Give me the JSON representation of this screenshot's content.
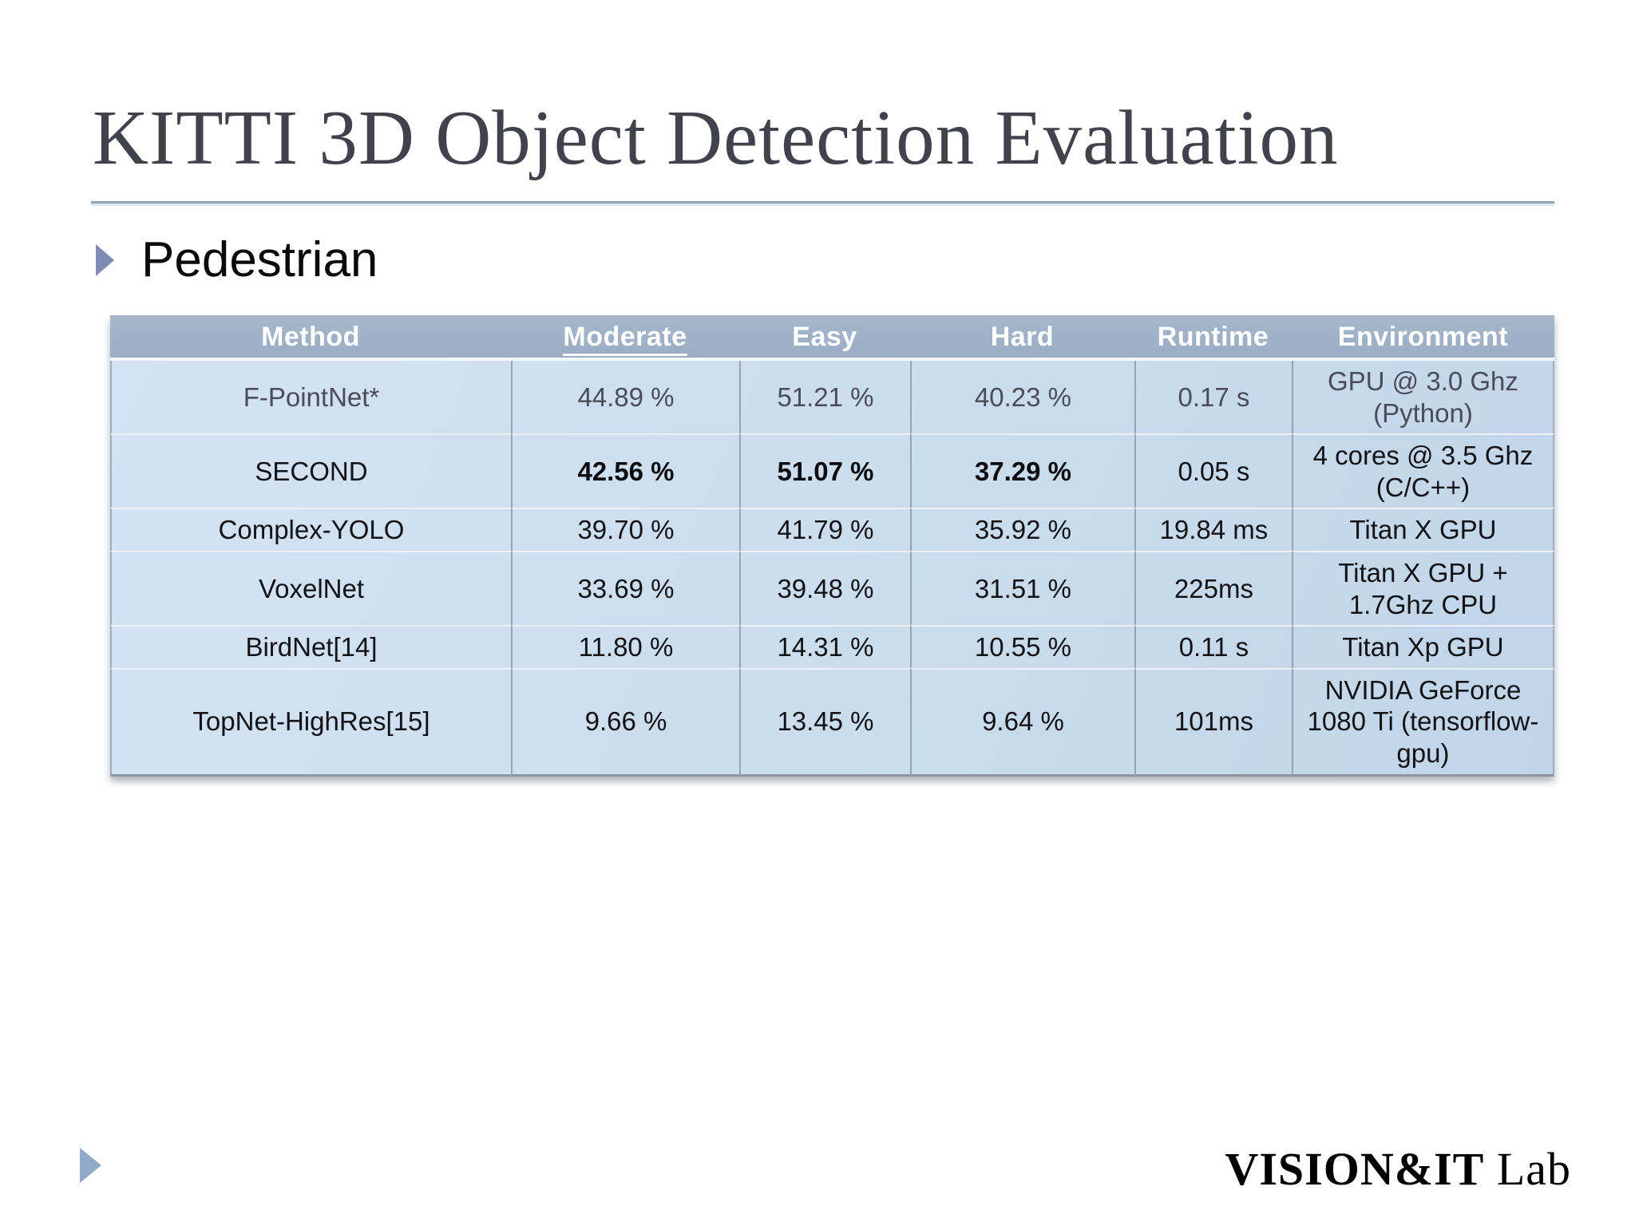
{
  "slide": {
    "title": "KITTI 3D Object Detection Evaluation",
    "section_heading": "Pedestrian",
    "footer_logo_main": "VISION&IT",
    "footer_logo_suffix": " Lab"
  },
  "table": {
    "columns": [
      {
        "key": "method",
        "label": "Method",
        "underlined": false
      },
      {
        "key": "moderate",
        "label": "Moderate",
        "underlined": true
      },
      {
        "key": "easy",
        "label": "Easy",
        "underlined": false
      },
      {
        "key": "hard",
        "label": "Hard",
        "underlined": false
      },
      {
        "key": "runtime",
        "label": "Runtime",
        "underlined": false
      },
      {
        "key": "environment",
        "label": "Environment",
        "underlined": false
      }
    ],
    "rows": [
      {
        "method": "F-PointNet*",
        "moderate": "44.89 %",
        "easy": "51.21 %",
        "hard": "40.23 %",
        "runtime": "0.17 s",
        "environment": "GPU @ 3.0 Ghz\n(Python)",
        "style": "muted"
      },
      {
        "method": "SECOND",
        "moderate": "42.56 %",
        "easy": "51.07 %",
        "hard": "37.29 %",
        "runtime": "0.05 s",
        "environment": "4 cores @ 3.5 Ghz\n(C/C++)",
        "style": "bold-values"
      },
      {
        "method": "Complex-YOLO",
        "moderate": "39.70 %",
        "easy": "41.79 %",
        "hard": "35.92 %",
        "runtime": "19.84 ms",
        "environment": "Titan X GPU",
        "style": "normal"
      },
      {
        "method": "VoxelNet",
        "moderate": "33.69 %",
        "easy": "39.48 %",
        "hard": "31.51 %",
        "runtime": "225ms",
        "environment": "Titan X GPU +\n1.7Ghz CPU",
        "style": "normal"
      },
      {
        "method": "BirdNet[14]",
        "moderate": "11.80 %",
        "easy": "14.31 %",
        "hard": "10.55 %",
        "runtime": "0.11 s",
        "environment": "Titan Xp GPU",
        "style": "normal"
      },
      {
        "method": "TopNet-HighRes[15]",
        "moderate": "9.66 %",
        "easy": "13.45 %",
        "hard": "9.64 %",
        "runtime": "101ms",
        "environment": "NVIDIA GeForce\n1080 Ti (tensorflow-\ngpu)",
        "style": "normal"
      }
    ]
  },
  "colors": {
    "title_text": "#42424c",
    "header_bg": "#9aadc4",
    "header_bg_light": "#a6b7cb",
    "header_text": "#ffffff",
    "body_bg_light": "#d4e3f3",
    "body_bg_dark": "#c1d5e9",
    "grid_vertical": "#98a3ae",
    "grid_horizontal": "#ecf1f7",
    "text": "#121217",
    "muted_text": "#4a4d59",
    "bullet_accent": "#7e8cb3",
    "footer_accent": "#8fa9c6",
    "divider": "#8ea3ba"
  }
}
